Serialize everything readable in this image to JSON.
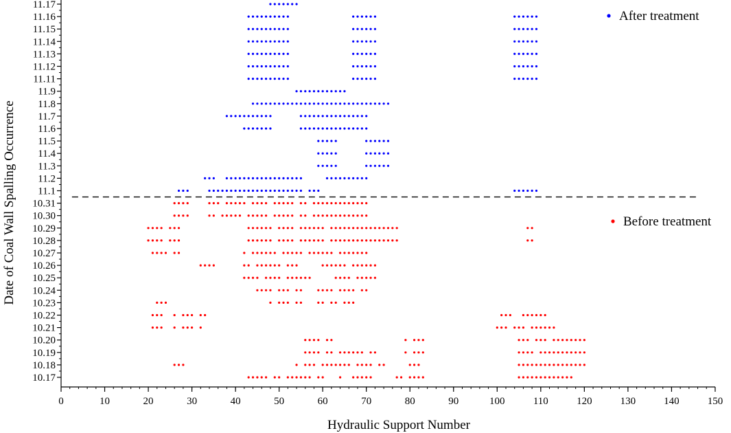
{
  "chart_data": {
    "type": "scatter",
    "xlabel": "Hydraulic Support Number",
    "ylabel": "Date of Coal Wall Spalling Occurrence",
    "xlim": [
      0,
      150
    ],
    "x_ticks": [
      0,
      10,
      20,
      30,
      40,
      50,
      60,
      70,
      80,
      90,
      100,
      110,
      120,
      130,
      140,
      150
    ],
    "x_minor_step": 2,
    "categories": [
      "10.17",
      "10.18",
      "10.19",
      "10.20",
      "10.21",
      "10.22",
      "10.23",
      "10.24",
      "10.25",
      "10.26",
      "10.27",
      "10.28",
      "10.29",
      "10.30",
      "10.31",
      "11.1",
      "11.2",
      "11.3",
      "11.4",
      "11.5",
      "11.6",
      "11.7",
      "11.8",
      "11.9",
      "11.11",
      "11.12",
      "11.13",
      "11.14",
      "11.15",
      "11.16",
      "11.17"
    ],
    "divider": {
      "between": [
        "10.31",
        "11.1"
      ],
      "style": "dashed"
    },
    "legend_position": "right",
    "series": [
      {
        "name": "Before treatment",
        "color": "#ff0000",
        "rows": [
          {
            "date": "10.17",
            "ranges": [
              [
                43,
                47
              ],
              [
                49,
                50
              ],
              [
                52,
                57
              ],
              [
                59,
                60
              ],
              [
                64,
                64
              ],
              [
                67,
                71
              ],
              [
                77,
                78
              ],
              [
                80,
                83
              ],
              [
                105,
                117
              ]
            ]
          },
          {
            "date": "10.18",
            "ranges": [
              [
                26,
                28
              ],
              [
                54,
                54
              ],
              [
                56,
                58
              ],
              [
                60,
                66
              ],
              [
                68,
                71
              ],
              [
                73,
                74
              ],
              [
                80,
                82
              ],
              [
                105,
                120
              ]
            ]
          },
          {
            "date": "10.19",
            "ranges": [
              [
                56,
                59
              ],
              [
                61,
                62
              ],
              [
                64,
                69
              ],
              [
                71,
                72
              ],
              [
                79,
                79
              ],
              [
                81,
                83
              ],
              [
                105,
                108
              ],
              [
                110,
                120
              ]
            ]
          },
          {
            "date": "10.20",
            "ranges": [
              [
                56,
                59
              ],
              [
                61,
                62
              ],
              [
                79,
                79
              ],
              [
                81,
                83
              ],
              [
                105,
                107
              ],
              [
                109,
                111
              ],
              [
                113,
                120
              ]
            ]
          },
          {
            "date": "10.21",
            "ranges": [
              [
                21,
                23
              ],
              [
                26,
                26
              ],
              [
                28,
                30
              ],
              [
                32,
                32
              ],
              [
                100,
                102
              ],
              [
                104,
                106
              ],
              [
                108,
                113
              ]
            ]
          },
          {
            "date": "10.22",
            "ranges": [
              [
                21,
                23
              ],
              [
                26,
                26
              ],
              [
                28,
                30
              ],
              [
                32,
                33
              ],
              [
                101,
                103
              ],
              [
                106,
                111
              ]
            ]
          },
          {
            "date": "10.23",
            "ranges": [
              [
                22,
                24
              ],
              [
                48,
                48
              ],
              [
                50,
                52
              ],
              [
                54,
                55
              ],
              [
                59,
                60
              ],
              [
                62,
                63
              ],
              [
                65,
                67
              ]
            ]
          },
          {
            "date": "10.24",
            "ranges": [
              [
                45,
                48
              ],
              [
                50,
                52
              ],
              [
                54,
                55
              ],
              [
                59,
                62
              ],
              [
                64,
                67
              ],
              [
                69,
                70
              ]
            ]
          },
          {
            "date": "10.25",
            "ranges": [
              [
                42,
                45
              ],
              [
                47,
                50
              ],
              [
                52,
                57
              ],
              [
                63,
                66
              ],
              [
                68,
                72
              ]
            ]
          },
          {
            "date": "10.26",
            "ranges": [
              [
                32,
                35
              ],
              [
                42,
                43
              ],
              [
                45,
                50
              ],
              [
                52,
                54
              ],
              [
                60,
                65
              ],
              [
                67,
                72
              ]
            ]
          },
          {
            "date": "10.27",
            "ranges": [
              [
                21,
                24
              ],
              [
                26,
                27
              ],
              [
                42,
                42
              ],
              [
                44,
                49
              ],
              [
                51,
                55
              ],
              [
                57,
                62
              ],
              [
                64,
                70
              ]
            ]
          },
          {
            "date": "10.28",
            "ranges": [
              [
                20,
                23
              ],
              [
                25,
                27
              ],
              [
                43,
                48
              ],
              [
                50,
                53
              ],
              [
                55,
                60
              ],
              [
                62,
                77
              ],
              [
                107,
                108
              ]
            ]
          },
          {
            "date": "10.29",
            "ranges": [
              [
                20,
                23
              ],
              [
                25,
                27
              ],
              [
                43,
                48
              ],
              [
                50,
                53
              ],
              [
                55,
                60
              ],
              [
                62,
                77
              ],
              [
                107,
                108
              ]
            ]
          },
          {
            "date": "10.30",
            "ranges": [
              [
                26,
                29
              ],
              [
                34,
                35
              ],
              [
                37,
                41
              ],
              [
                43,
                47
              ],
              [
                49,
                53
              ],
              [
                55,
                56
              ],
              [
                58,
                70
              ]
            ]
          },
          {
            "date": "10.31",
            "ranges": [
              [
                26,
                29
              ],
              [
                34,
                36
              ],
              [
                38,
                42
              ],
              [
                44,
                47
              ],
              [
                49,
                53
              ],
              [
                55,
                56
              ],
              [
                58,
                70
              ]
            ]
          }
        ]
      },
      {
        "name": "After treatment",
        "color": "#0000ff",
        "rows": [
          {
            "date": "11.1",
            "ranges": [
              [
                27,
                29
              ],
              [
                34,
                55
              ],
              [
                57,
                59
              ],
              [
                104,
                109
              ]
            ]
          },
          {
            "date": "11.2",
            "ranges": [
              [
                33,
                35
              ],
              [
                38,
                55
              ],
              [
                61,
                70
              ]
            ]
          },
          {
            "date": "11.3",
            "ranges": [
              [
                59,
                63
              ],
              [
                70,
                75
              ]
            ]
          },
          {
            "date": "11.4",
            "ranges": [
              [
                59,
                63
              ],
              [
                70,
                75
              ]
            ]
          },
          {
            "date": "11.5",
            "ranges": [
              [
                59,
                63
              ],
              [
                70,
                75
              ]
            ]
          },
          {
            "date": "11.6",
            "ranges": [
              [
                42,
                48
              ],
              [
                55,
                70
              ]
            ]
          },
          {
            "date": "11.7",
            "ranges": [
              [
                38,
                48
              ],
              [
                55,
                70
              ]
            ]
          },
          {
            "date": "11.8",
            "ranges": [
              [
                44,
                75
              ]
            ]
          },
          {
            "date": "11.9",
            "ranges": [
              [
                54,
                65
              ]
            ]
          },
          {
            "date": "11.11",
            "ranges": [
              [
                43,
                52
              ],
              [
                67,
                72
              ],
              [
                104,
                109
              ]
            ]
          },
          {
            "date": "11.12",
            "ranges": [
              [
                43,
                52
              ],
              [
                67,
                72
              ],
              [
                104,
                109
              ]
            ]
          },
          {
            "date": "11.13",
            "ranges": [
              [
                43,
                52
              ],
              [
                67,
                72
              ],
              [
                104,
                109
              ]
            ]
          },
          {
            "date": "11.14",
            "ranges": [
              [
                43,
                52
              ],
              [
                67,
                72
              ],
              [
                104,
                109
              ]
            ]
          },
          {
            "date": "11.15",
            "ranges": [
              [
                43,
                52
              ],
              [
                67,
                72
              ],
              [
                104,
                109
              ]
            ]
          },
          {
            "date": "11.16",
            "ranges": [
              [
                43,
                52
              ],
              [
                67,
                72
              ],
              [
                104,
                109
              ]
            ]
          },
          {
            "date": "11.17",
            "ranges": [
              [
                48,
                54
              ]
            ]
          }
        ]
      }
    ]
  }
}
